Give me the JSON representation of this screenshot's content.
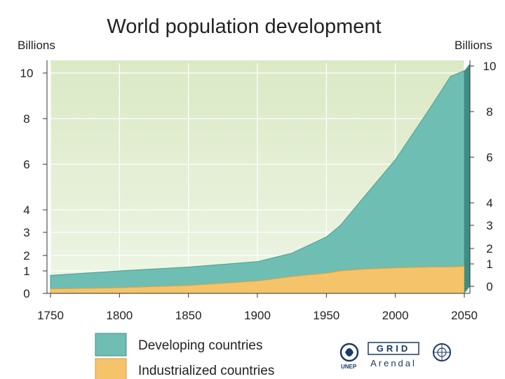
{
  "chart_data": {
    "type": "area",
    "stacked": true,
    "title": "World population development",
    "ylabel_left": "Billions",
    "ylabel_right": "Billions",
    "xlim": [
      1750,
      2050
    ],
    "ylim": [
      0,
      10
    ],
    "x_ticks": [
      "1750",
      "1800",
      "1850",
      "1900",
      "1950",
      "2000",
      "2050"
    ],
    "y_ticks_left": [
      "0",
      "1",
      "2",
      "3",
      "4",
      "6",
      "8",
      "10"
    ],
    "y_ticks_right": [
      "0",
      "1",
      "2",
      "3",
      "4",
      "6",
      "8",
      "10"
    ],
    "y_scale": "piecewise-linear (0–4 compressed lower band, 4–10 upper band)",
    "grid": true,
    "legend_position": "bottom",
    "x": [
      1750,
      1800,
      1850,
      1900,
      1925,
      1950,
      1960,
      1975,
      2000,
      2025,
      2040,
      2050
    ],
    "series": [
      {
        "name": "Industrialized countries",
        "color": "#f4c36a",
        "values": [
          0.2,
          0.25,
          0.35,
          0.55,
          0.75,
          0.9,
          1.0,
          1.1,
          1.2,
          1.25,
          1.25,
          1.3
        ]
      },
      {
        "name": "Developing countries",
        "color": "#6fbeb4",
        "values": [
          0.6,
          0.75,
          0.9,
          1.05,
          1.35,
          1.9,
          2.3,
          3.3,
          5.0,
          7.2,
          8.6,
          8.8
        ]
      }
    ]
  },
  "logos": {
    "unep": "UNEP",
    "grid": "GRID",
    "arendal": "Arendal"
  }
}
